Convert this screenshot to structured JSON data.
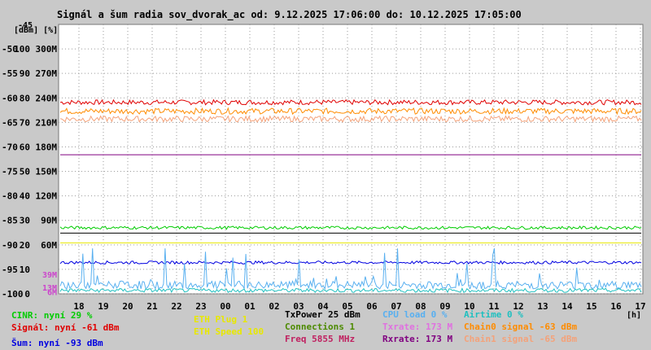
{
  "chart_data": {
    "type": "line",
    "title": "Signál a šum radia sov_dvorak_ac od: 9.12.2025 17:06:00 do: 10.12.2025 17:05:00",
    "ylabel": "[dBm] [%]",
    "xunit": "[h]",
    "ylim": [
      -100,
      -45
    ],
    "grid": true,
    "y_ticks": [
      {
        "v": -100,
        "dbm": "-100",
        "pct": "0",
        "rate": ""
      },
      {
        "v": -95,
        "dbm": "-95",
        "pct": "10",
        "rate": ""
      },
      {
        "v": -90,
        "dbm": "-90",
        "pct": "20",
        "rate": "60M"
      },
      {
        "v": -85,
        "dbm": "-85",
        "pct": "30",
        "rate": "90M"
      },
      {
        "v": -80,
        "dbm": "-80",
        "pct": "40",
        "rate": "120M"
      },
      {
        "v": -75,
        "dbm": "-75",
        "pct": "50",
        "rate": "150M"
      },
      {
        "v": -70,
        "dbm": "-70",
        "pct": "60",
        "rate": "180M"
      },
      {
        "v": -65,
        "dbm": "-65",
        "pct": "70",
        "rate": "210M"
      },
      {
        "v": -60,
        "dbm": "-60",
        "pct": "80",
        "rate": "240M"
      },
      {
        "v": -55,
        "dbm": "-55",
        "pct": "90",
        "rate": "270M"
      },
      {
        "v": -50,
        "dbm": "-50",
        "pct": "100",
        "rate": "300M"
      }
    ],
    "top_tick": "-45",
    "low_rate_ticks": [
      {
        "v": -96,
        "label": "39M"
      },
      {
        "v": -98.7,
        "label": "13M"
      },
      {
        "v": -99.6,
        "label": "6M"
      }
    ],
    "x_ticks": [
      "18",
      "19",
      "20",
      "21",
      "22",
      "23",
      "00",
      "01",
      "02",
      "03",
      "04",
      "05",
      "06",
      "07",
      "08",
      "09",
      "10",
      "11",
      "12",
      "13",
      "14",
      "15",
      "16",
      "17"
    ],
    "series": [
      {
        "name": "Signál",
        "color": "#e00000",
        "base": -60.9,
        "noise": 0.5
      },
      {
        "name": "Chain0 signal",
        "color": "#ff8c00",
        "base": -62.7,
        "noise": 0.6
      },
      {
        "name": "Chain1 signal",
        "color": "#f4a27a",
        "base": -64.3,
        "noise": 0.6
      },
      {
        "name": "Šum",
        "color": "#0000e0",
        "base": -93.6,
        "noise": 0.3
      },
      {
        "name": "CINR",
        "color": "#00cc00",
        "base": -86.5,
        "noise": 0.3
      },
      {
        "name": "Rxrate",
        "color": "#800080",
        "base": -71.6,
        "noise": 0
      },
      {
        "name": "Txrate",
        "color": "#000000",
        "base": -87.6,
        "noise": 0
      },
      {
        "name": "ETH Speed",
        "color": "#e8e800",
        "base": -89.6,
        "noise": 0
      },
      {
        "name": "CPU load",
        "color": "#59b0f0",
        "base": -98.2,
        "noise": 0.8
      },
      {
        "name": "Airtime",
        "color": "#20c0c0",
        "base": -99.3,
        "noise": 0.4
      }
    ]
  },
  "legend": [
    {
      "text": "CINR: nyní 29 %",
      "color": "#00cc00"
    },
    {
      "text": "Signál: nyní -61 dBm",
      "color": "#e00000"
    },
    {
      "text": "Šum: nyní -93 dBm",
      "color": "#0000e0"
    },
    {
      "text": "ETH Plug 1",
      "color": "#e8e800"
    },
    {
      "text": "ETH Speed 100",
      "color": "#e8e800"
    },
    {
      "text": "TxPower 25 dBm",
      "color": "#000000"
    },
    {
      "text": "Connections 1",
      "color": "#4c8a00"
    },
    {
      "text": "Freq 5855 MHz",
      "color": "#c02060"
    },
    {
      "text": "CPU load 0 %",
      "color": "#59b0f0"
    },
    {
      "text": "Txrate: 173 M",
      "color": "#e070e0"
    },
    {
      "text": "Rxrate: 173 M",
      "color": "#800080"
    },
    {
      "text": "Airtime 0 %",
      "color": "#20c0c0"
    },
    {
      "text": "Chain0 signal -63 dBm",
      "color": "#ff8c00"
    },
    {
      "text": "Chain1 signal -65 dBm",
      "color": "#f4a27a"
    }
  ]
}
